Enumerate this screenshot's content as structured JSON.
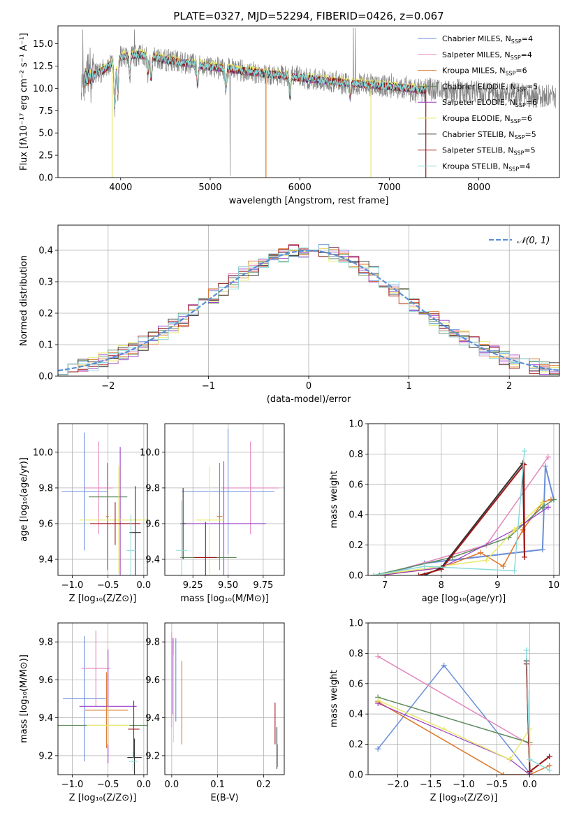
{
  "chart_data": [
    {
      "type": "line",
      "title": "PLATE=0327, MJD=52294, FIBERID=0426, z=0.067",
      "xlabel": "wavelength [Angstrom, rest frame]",
      "ylabel": "Flux [fλ10⁻¹⁷ erg cm⁻² s⁻¹ A⁻¹]",
      "xlim": [
        3300,
        8900
      ],
      "ylim": [
        0,
        17
      ],
      "xticks": [
        4000,
        5000,
        6000,
        7000,
        8000
      ],
      "yticks": [
        0.0,
        2.5,
        5.0,
        7.5,
        10.0,
        12.5,
        15.0
      ],
      "grid": false,
      "legend_position": "top-right",
      "observed": {
        "color": "#808080"
      },
      "series": [
        {
          "name": "Chabrier MILES, N_SSP=4",
          "color": "#6a8fd8"
        },
        {
          "name": "Salpeter MILES, N_SSP=4",
          "color": "#e388bd"
        },
        {
          "name": "Kroupa MILES, N_SSP=6",
          "color": "#dc7628"
        },
        {
          "name": "Chabrier ELODIE, N_SSP=5",
          "color": "#5c8a5c"
        },
        {
          "name": "Salpeter ELODIE, N_SSP=6",
          "color": "#9a3ec8"
        },
        {
          "name": "Kroupa ELODIE, N_SSP=6",
          "color": "#e8e86a"
        },
        {
          "name": "Chabrier STELIB, N_SSP=5",
          "color": "#333333"
        },
        {
          "name": "Salpeter STELIB, N_SSP=5",
          "color": "#a01818"
        },
        {
          "name": "Kroupa STELIB, N_SSP=4",
          "color": "#8adada"
        }
      ],
      "continuum": {
        "x": [
          3550,
          3700,
          3800,
          3900,
          4000,
          4200,
          4500,
          5000,
          5500,
          6000,
          6500,
          7000,
          7400
        ],
        "y": [
          11,
          11.5,
          12,
          12.8,
          13.5,
          13.8,
          13.2,
          12.4,
          11.8,
          11.2,
          10.6,
          10.2,
          9.8
        ]
      }
    },
    {
      "type": "bar",
      "xlabel": "(data-model)/error",
      "ylabel": "Normed distribution",
      "xlim": [
        -2.5,
        2.5
      ],
      "ylim": [
        0,
        0.48
      ],
      "xticks": [
        -2,
        -1,
        0,
        1,
        2
      ],
      "yticks": [
        0.0,
        0.1,
        0.2,
        0.3,
        0.4
      ],
      "grid": true,
      "legend_position": "top-right",
      "reference": {
        "name": "𝒩(0, 1)",
        "color": "#5b8fd6"
      },
      "bin_centers": [
        -2.45,
        -2.35,
        -2.25,
        -2.15,
        -2.05,
        -1.95,
        -1.85,
        -1.75,
        -1.65,
        -1.55,
        -1.45,
        -1.35,
        -1.25,
        -1.15,
        -1.05,
        -0.95,
        -0.85,
        -0.75,
        -0.65,
        -0.55,
        -0.45,
        -0.35,
        -0.25,
        -0.15,
        -0.05,
        0.05,
        0.15,
        0.25,
        0.35,
        0.45,
        0.55,
        0.65,
        0.75,
        0.85,
        0.95,
        1.05,
        1.15,
        1.25,
        1.35,
        1.45,
        1.55,
        1.65,
        1.75,
        1.85,
        1.95,
        2.05,
        2.15,
        2.25,
        2.35,
        2.45
      ]
    },
    {
      "type": "scatter",
      "xlabel": "Z [log₁₀(Z/Z⊙)]",
      "ylabel": "age  [log₁₀(age/yr)]",
      "xlim": [
        -1.2,
        0.05
      ],
      "ylim": [
        9.31,
        10.16
      ],
      "xticks": [
        -1.0,
        -0.5,
        0.0
      ],
      "yticks": [
        9.4,
        9.6,
        9.8,
        10.0
      ],
      "grid": true,
      "crosses": [
        {
          "c": "#6a8fd8",
          "x": -0.83,
          "y": 9.78,
          "dx": 0.32,
          "dy": 0.33
        },
        {
          "c": "#e388bd",
          "x": -0.63,
          "y": 9.8,
          "dx": 0.2,
          "dy": 0.26
        },
        {
          "c": "#dc7628",
          "x": -0.51,
          "y": 9.64,
          "dx": 0.02,
          "dy": 0.3
        },
        {
          "c": "#5c8a5c",
          "x": -0.5,
          "y": 9.75,
          "dx": 0.27,
          "dy": 0.0
        },
        {
          "c": "#9a3ec8",
          "x": -0.33,
          "y": 9.6,
          "dx": 0.28,
          "dy": 0.43
        },
        {
          "c": "#e8e86a",
          "x": -0.35,
          "y": 9.62,
          "dx": 0.55,
          "dy": 0.3
        },
        {
          "c": "#333333",
          "x": -0.12,
          "y": 9.55,
          "dx": 0.08,
          "dy": 0.26
        },
        {
          "c": "#a01818",
          "x": -0.4,
          "y": 9.6,
          "dx": 0.35,
          "dy": 0.12
        },
        {
          "c": "#8adada",
          "x": -0.18,
          "y": 9.45,
          "dx": 0.06,
          "dy": 0.2
        }
      ]
    },
    {
      "type": "scatter",
      "xlabel": "mass [log₁₀(M/M⊙)]",
      "ylabel": "",
      "xlim": [
        9.05,
        9.9
      ],
      "ylim": [
        9.31,
        10.16
      ],
      "xticks": [
        9.25,
        9.5,
        9.75
      ],
      "yticks": [
        9.4,
        9.6,
        9.8,
        10.0
      ],
      "grid": true,
      "crosses": [
        {
          "c": "#6a8fd8",
          "x": 9.5,
          "y": 9.78,
          "dx": 0.33,
          "dy": 0.35
        },
        {
          "c": "#e388bd",
          "x": 9.66,
          "y": 9.8,
          "dx": 0.2,
          "dy": 0.26
        },
        {
          "c": "#dc7628",
          "x": 9.44,
          "y": 9.64,
          "dx": 0.02,
          "dy": 0.3
        },
        {
          "c": "#5c8a5c",
          "x": 9.36,
          "y": 9.41,
          "dx": 0.2,
          "dy": 0.0
        },
        {
          "c": "#9a3ec8",
          "x": 9.47,
          "y": 9.6,
          "dx": 0.3,
          "dy": 0.35
        },
        {
          "c": "#e8e86a",
          "x": 9.37,
          "y": 9.62,
          "dx": 0.1,
          "dy": 0.3
        },
        {
          "c": "#333333",
          "x": 9.18,
          "y": 9.6,
          "dx": 0.02,
          "dy": 0.2
        },
        {
          "c": "#a01818",
          "x": 9.34,
          "y": 9.41,
          "dx": 0.08,
          "dy": 0.2
        },
        {
          "c": "#8adada",
          "x": 9.17,
          "y": 9.45,
          "dx": 0.04,
          "dy": 0.28
        }
      ]
    },
    {
      "type": "line",
      "xlabel": "age  [log₁₀(age/yr)]",
      "ylabel": "mass weight",
      "xlim": [
        6.7,
        10.1
      ],
      "ylim": [
        0,
        1
      ],
      "xticks": [
        7,
        8,
        9,
        10
      ],
      "yticks": [
        0.0,
        0.2,
        0.4,
        0.6,
        0.8,
        1.0
      ],
      "grid": true,
      "series": [
        {
          "c": "#6a8fd8",
          "w": 2,
          "pts": [
            [
              6.9,
              0.0
            ],
            [
              7.7,
              0.08
            ],
            [
              9.8,
              0.17
            ],
            [
              9.85,
              0.72
            ],
            [
              10.0,
              0.5
            ]
          ]
        },
        {
          "c": "#e388bd",
          "w": 1.5,
          "pts": [
            [
              6.9,
              0.0
            ],
            [
              8.8,
              0.2
            ],
            [
              9.9,
              0.78
            ]
          ]
        },
        {
          "c": "#dc7628",
          "w": 1.5,
          "pts": [
            [
              6.9,
              0.0
            ],
            [
              8.0,
              0.05
            ],
            [
              8.7,
              0.15
            ],
            [
              9.1,
              0.06
            ],
            [
              9.45,
              0.3
            ],
            [
              9.8,
              0.48
            ],
            [
              9.95,
              0.5
            ]
          ]
        },
        {
          "c": "#5c8a5c",
          "w": 1.5,
          "pts": [
            [
              6.8,
              0.0
            ],
            [
              8.2,
              0.12
            ],
            [
              9.2,
              0.25
            ],
            [
              9.8,
              0.45
            ],
            [
              10.0,
              0.5
            ]
          ]
        },
        {
          "c": "#9a3ec8",
          "w": 1.2,
          "pts": [
            [
              6.9,
              0.0
            ],
            [
              8.0,
              0.05
            ],
            [
              9.3,
              0.3
            ],
            [
              9.9,
              0.45
            ]
          ]
        },
        {
          "c": "#e8e86a",
          "w": 1.5,
          "pts": [
            [
              6.8,
              0.0
            ],
            [
              8.8,
              0.1
            ],
            [
              9.3,
              0.3
            ],
            [
              9.8,
              0.48
            ]
          ]
        },
        {
          "c": "#333333",
          "w": 2,
          "pts": [
            [
              7.7,
              0.0
            ],
            [
              8.0,
              0.05
            ],
            [
              9.45,
              0.74
            ],
            [
              9.48,
              0.12
            ]
          ]
        },
        {
          "c": "#a01818",
          "w": 2,
          "pts": [
            [
              7.6,
              0.0
            ],
            [
              8.0,
              0.04
            ],
            [
              9.47,
              0.73
            ],
            [
              9.48,
              0.12
            ]
          ]
        },
        {
          "c": "#8adada",
          "w": 1.5,
          "pts": [
            [
              6.8,
              0.0
            ],
            [
              7.7,
              0.06
            ],
            [
              9.3,
              0.03
            ],
            [
              9.48,
              0.82
            ]
          ]
        }
      ]
    },
    {
      "type": "scatter",
      "xlabel": "Z [log₁₀(Z/Z⊙)]",
      "ylabel": "mass [log₁₀(M/M⊙)]",
      "xlim": [
        -1.2,
        0.05
      ],
      "ylim": [
        9.1,
        9.9
      ],
      "xticks": [
        -1.0,
        -0.5,
        0.0
      ],
      "yticks": [
        9.2,
        9.4,
        9.6,
        9.8
      ],
      "grid": true,
      "crosses": [
        {
          "c": "#6a8fd8",
          "x": -0.83,
          "y": 9.5,
          "dx": 0.3,
          "dy": 0.33
        },
        {
          "c": "#e388bd",
          "x": -0.67,
          "y": 9.66,
          "dx": 0.2,
          "dy": 0.2
        },
        {
          "c": "#dc7628",
          "x": -0.52,
          "y": 9.44,
          "dx": 0.3,
          "dy": 0.2
        },
        {
          "c": "#5c8a5c",
          "x": -0.5,
          "y": 9.36,
          "dx": 0.7,
          "dy": 0.0
        },
        {
          "c": "#9a3ec8",
          "x": -0.5,
          "y": 9.46,
          "dx": 0.4,
          "dy": 0.3
        },
        {
          "c": "#e8e86a",
          "x": -0.5,
          "y": 9.36,
          "dx": 0.3,
          "dy": 0.1
        },
        {
          "c": "#333333",
          "x": -0.13,
          "y": 9.19,
          "dx": 0.1,
          "dy": 0.1
        },
        {
          "c": "#a01818",
          "x": -0.14,
          "y": 9.34,
          "dx": 0.08,
          "dy": 0.15
        },
        {
          "c": "#8adada",
          "x": -0.15,
          "y": 9.17,
          "dx": 0.06,
          "dy": 0.05
        }
      ]
    },
    {
      "type": "scatter",
      "xlabel": "E(B-V)",
      "ylabel": "",
      "xlim": [
        -0.015,
        0.245
      ],
      "ylim": [
        9.1,
        9.9
      ],
      "xticks": [
        0.0,
        0.1,
        0.2
      ],
      "yticks": [
        9.2,
        9.4,
        9.6,
        9.8
      ],
      "grid": true,
      "crosses": [
        {
          "c": "#e388bd",
          "x": 0.0,
          "y": 9.6,
          "dx": 0.0,
          "dy": 0.25
        },
        {
          "c": "#9a3ec8",
          "x": 0.003,
          "y": 9.62,
          "dx": 0.0,
          "dy": 0.2
        },
        {
          "c": "#e8e86a",
          "x": 0.004,
          "y": 9.5,
          "dx": 0.0,
          "dy": 0.23
        },
        {
          "c": "#6a8fd8",
          "x": 0.009,
          "y": 9.6,
          "dx": 0.0,
          "dy": 0.22
        },
        {
          "c": "#dc7628",
          "x": 0.022,
          "y": 9.48,
          "dx": 0.0,
          "dy": 0.22
        },
        {
          "c": "#a01818",
          "x": 0.225,
          "y": 9.37,
          "dx": 0.0,
          "dy": 0.11
        },
        {
          "c": "#333333",
          "x": 0.229,
          "y": 9.24,
          "dx": 0.0,
          "dy": 0.11
        },
        {
          "c": "#5c8a5c",
          "x": 0.23,
          "y": 9.2,
          "dx": 0.0,
          "dy": 0.06
        }
      ]
    },
    {
      "type": "line",
      "xlabel": "Z [log₁₀(Z/Z⊙)]",
      "ylabel": "mass weight",
      "xlim": [
        -2.45,
        0.45
      ],
      "ylim": [
        0,
        1
      ],
      "xticks": [
        -2.0,
        -1.5,
        -1.0,
        -0.5,
        0.0
      ],
      "yticks": [
        0.0,
        0.2,
        0.4,
        0.6,
        0.8,
        1.0
      ],
      "grid": true,
      "series": [
        {
          "c": "#6a8fd8",
          "w": 1.5,
          "pts": [
            [
              -2.3,
              0.17
            ],
            [
              -1.3,
              0.72
            ],
            [
              0.0,
              0.01
            ]
          ]
        },
        {
          "c": "#e388bd",
          "w": 1.5,
          "pts": [
            [
              -2.3,
              0.78
            ],
            [
              0.0,
              0.2
            ]
          ]
        },
        {
          "c": "#dc7628",
          "w": 1.5,
          "pts": [
            [
              -2.3,
              0.48
            ],
            [
              -0.4,
              0.0
            ],
            [
              0.0,
              0.0
            ],
            [
              0.3,
              0.06
            ]
          ]
        },
        {
          "c": "#5c8a5c",
          "w": 1.5,
          "pts": [
            [
              -2.3,
              0.51
            ],
            [
              0.0,
              0.21
            ]
          ]
        },
        {
          "c": "#9a3ec8",
          "w": 1.2,
          "pts": [
            [
              -2.3,
              0.47
            ],
            [
              -0.3,
              0.1
            ],
            [
              0.0,
              0.0
            ]
          ]
        },
        {
          "c": "#e8e86a",
          "w": 1.5,
          "pts": [
            [
              -2.3,
              0.49
            ],
            [
              -1.3,
              0.3
            ],
            [
              -0.3,
              0.1
            ],
            [
              0.0,
              0.3
            ],
            [
              0.0,
              0.02
            ]
          ]
        },
        {
          "c": "#333333",
          "w": 2,
          "pts": [
            [
              -0.05,
              0.75
            ],
            [
              0.0,
              0.02
            ],
            [
              0.3,
              0.12
            ]
          ]
        },
        {
          "c": "#a01818",
          "w": 2,
          "pts": [
            [
              -0.05,
              0.73
            ],
            [
              0.0,
              0.02
            ],
            [
              0.3,
              0.12
            ]
          ]
        },
        {
          "c": "#8adada",
          "w": 1.5,
          "pts": [
            [
              -0.05,
              0.82
            ],
            [
              0.0,
              0.1
            ],
            [
              0.3,
              0.03
            ]
          ]
        }
      ]
    }
  ]
}
